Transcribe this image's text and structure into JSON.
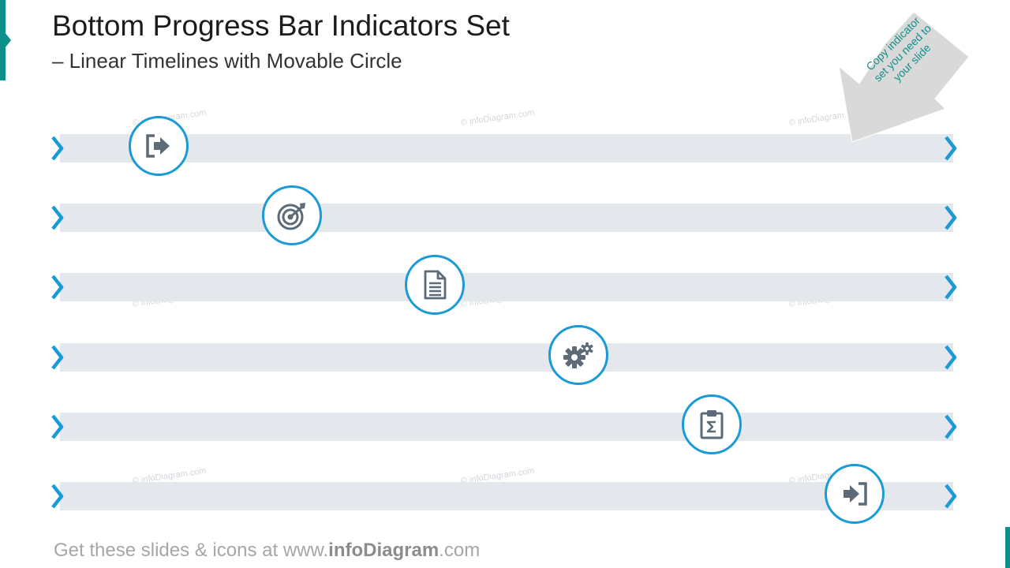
{
  "title": "Bottom Progress Bar Indicators Set",
  "subtitle": "– Linear Timelines with Movable Circle",
  "callout": {
    "line1": "Copy indicator",
    "line2": "set you need to",
    "line3": "your slide"
  },
  "watermark_text": "© infoDiagram.com",
  "footer": {
    "prefix": "Get these slides & icons at www.",
    "brand": "infoDiagram",
    "suffix": ".com"
  },
  "colors": {
    "accent": "#1a9ad6",
    "track": "#e4e7ec",
    "icon": "#5d6a78",
    "teal": "#0f8f8a",
    "callout_bg": "#d9d9d9"
  },
  "rows": [
    {
      "icon": "exit-icon",
      "progress": 0.11
    },
    {
      "icon": "target-icon",
      "progress": 0.26
    },
    {
      "icon": "document-icon",
      "progress": 0.42
    },
    {
      "icon": "gears-icon",
      "progress": 0.58
    },
    {
      "icon": "clipboard-sum-icon",
      "progress": 0.73
    },
    {
      "icon": "enter-icon",
      "progress": 0.89
    }
  ]
}
